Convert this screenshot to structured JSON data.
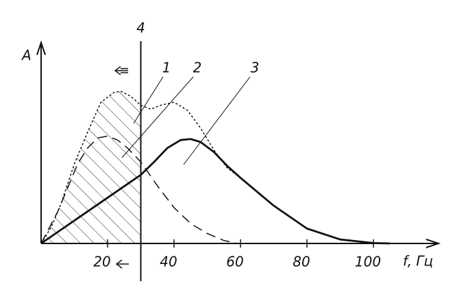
{
  "chart_data": {
    "type": "line",
    "xlabel": "f, Гц",
    "ylabel": "A",
    "xlim": [
      0,
      120
    ],
    "ylim": [
      0,
      10
    ],
    "xticks": [
      20,
      40,
      60,
      80,
      100
    ],
    "vline": {
      "x": 30,
      "label": "4"
    },
    "series": [
      {
        "name": "1",
        "color": "#111",
        "dash": "dotted",
        "x": [
          0,
          3,
          6,
          10,
          14,
          18,
          22,
          24,
          27,
          30,
          33,
          36,
          40,
          44,
          48,
          52,
          56,
          60,
          70,
          80,
          90,
          100,
          105
        ],
        "values": [
          0,
          0.8,
          2.0,
          4.0,
          5.6,
          7.1,
          7.6,
          7.65,
          7.4,
          6.95,
          6.75,
          6.95,
          7.1,
          6.7,
          5.8,
          4.7,
          3.8,
          3.3,
          1.9,
          0.75,
          0.2,
          0.02,
          0
        ]
      },
      {
        "name": "2",
        "color": "#111",
        "dash": "dashed",
        "x": [
          0,
          5,
          8,
          11,
          14,
          17,
          20,
          23,
          26,
          30,
          35,
          40,
          45,
          50,
          55,
          59
        ],
        "values": [
          0,
          1.6,
          2.8,
          4.0,
          4.8,
          5.3,
          5.4,
          5.2,
          4.8,
          4.1,
          2.9,
          1.8,
          1.0,
          0.5,
          0.15,
          0
        ]
      },
      {
        "name": "3",
        "color": "#111",
        "dash": "solid",
        "x": [
          0,
          10,
          20,
          30,
          34,
          38,
          42,
          45,
          48,
          52,
          56,
          60,
          70,
          80,
          90,
          100,
          105
        ],
        "values": [
          0,
          1.15,
          2.3,
          3.45,
          4.1,
          4.8,
          5.2,
          5.25,
          5.1,
          4.6,
          3.9,
          3.3,
          1.9,
          0.75,
          0.2,
          0.02,
          0
        ]
      }
    ]
  }
}
